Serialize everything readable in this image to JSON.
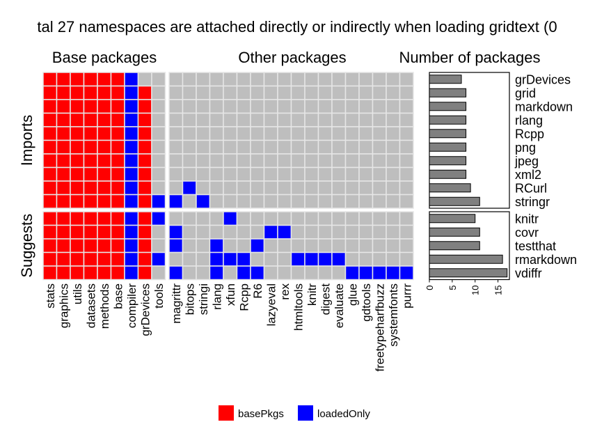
{
  "chart_data": {
    "type": "heatmap",
    "title": "tal 27 namespaces are attached directly or indirectly when loading gridtext (0",
    "panel_titles": {
      "base": "Base packages",
      "other": "Other packages",
      "count": "Number of packages"
    },
    "row_groups": [
      {
        "name": "Imports",
        "rows": [
          "grDevices",
          "grid",
          "markdown",
          "rlang",
          "Rcpp",
          "png",
          "jpeg",
          "xml2",
          "RCurl",
          "stringr"
        ]
      },
      {
        "name": "Suggests",
        "rows": [
          "knitr",
          "covr",
          "testthat",
          "rmarkdown",
          "vdiffr"
        ]
      }
    ],
    "base_columns": [
      "stats",
      "graphics",
      "utils",
      "datasets",
      "methods",
      "base",
      "compiler",
      "grDevices",
      "tools"
    ],
    "other_columns": [
      "magrittr",
      "bitops",
      "stringi",
      "rlang",
      "xfun",
      "Rcpp",
      "R6",
      "lazyeval",
      "rex",
      "htmltools",
      "knitr",
      "digest",
      "evaluate",
      "glue",
      "gdtools",
      "freetypeharfbuzz",
      "systemfonts",
      "purrr"
    ],
    "cells": {
      "grDevices": {
        "basePkgs": [
          "stats",
          "graphics",
          "utils",
          "datasets",
          "methods",
          "base"
        ],
        "loadedOnly": [
          "compiler"
        ]
      },
      "grid": {
        "basePkgs": [
          "stats",
          "graphics",
          "utils",
          "datasets",
          "methods",
          "base",
          "grDevices"
        ],
        "loadedOnly": [
          "compiler"
        ]
      },
      "markdown": {
        "basePkgs": [
          "stats",
          "graphics",
          "utils",
          "datasets",
          "methods",
          "base",
          "grDevices"
        ],
        "loadedOnly": [
          "compiler"
        ]
      },
      "rlang": {
        "basePkgs": [
          "stats",
          "graphics",
          "utils",
          "datasets",
          "methods",
          "base",
          "grDevices"
        ],
        "loadedOnly": [
          "compiler"
        ]
      },
      "Rcpp": {
        "basePkgs": [
          "stats",
          "graphics",
          "utils",
          "datasets",
          "methods",
          "base",
          "grDevices"
        ],
        "loadedOnly": [
          "compiler"
        ]
      },
      "png": {
        "basePkgs": [
          "stats",
          "graphics",
          "utils",
          "datasets",
          "methods",
          "base",
          "grDevices"
        ],
        "loadedOnly": [
          "compiler"
        ]
      },
      "jpeg": {
        "basePkgs": [
          "stats",
          "graphics",
          "utils",
          "datasets",
          "methods",
          "base",
          "grDevices"
        ],
        "loadedOnly": [
          "compiler"
        ]
      },
      "xml2": {
        "basePkgs": [
          "stats",
          "graphics",
          "utils",
          "datasets",
          "methods",
          "base",
          "grDevices"
        ],
        "loadedOnly": [
          "compiler"
        ]
      },
      "RCurl": {
        "basePkgs": [
          "stats",
          "graphics",
          "utils",
          "datasets",
          "methods",
          "base",
          "grDevices"
        ],
        "loadedOnly": [
          "compiler",
          "bitops"
        ]
      },
      "stringr": {
        "basePkgs": [
          "stats",
          "graphics",
          "utils",
          "datasets",
          "methods",
          "base",
          "grDevices"
        ],
        "loadedOnly": [
          "compiler",
          "tools",
          "magrittr",
          "stringi"
        ]
      },
      "knitr": {
        "basePkgs": [
          "stats",
          "graphics",
          "utils",
          "datasets",
          "methods",
          "base",
          "grDevices"
        ],
        "loadedOnly": [
          "compiler",
          "tools",
          "xfun"
        ]
      },
      "covr": {
        "basePkgs": [
          "stats",
          "graphics",
          "utils",
          "datasets",
          "methods",
          "base",
          "grDevices"
        ],
        "loadedOnly": [
          "compiler",
          "magrittr",
          "lazyeval",
          "rex"
        ]
      },
      "testthat": {
        "basePkgs": [
          "stats",
          "graphics",
          "utils",
          "datasets",
          "methods",
          "base",
          "grDevices"
        ],
        "loadedOnly": [
          "compiler",
          "magrittr",
          "rlang",
          "R6"
        ]
      },
      "rmarkdown": {
        "basePkgs": [
          "stats",
          "graphics",
          "utils",
          "datasets",
          "methods",
          "base",
          "grDevices"
        ],
        "loadedOnly": [
          "compiler",
          "tools",
          "rlang",
          "xfun",
          "Rcpp",
          "htmltools",
          "knitr",
          "digest",
          "evaluate"
        ]
      },
      "vdiffr": {
        "basePkgs": [
          "stats",
          "graphics",
          "utils",
          "datasets",
          "methods",
          "base",
          "grDevices"
        ],
        "loadedOnly": [
          "compiler",
          "magrittr",
          "rlang",
          "Rcpp",
          "R6",
          "glue",
          "gdtools",
          "freetypeharfbuzz",
          "systemfonts",
          "purrr"
        ]
      }
    },
    "package_counts": {
      "grDevices": 7,
      "grid": 8,
      "markdown": 8,
      "rlang": 8,
      "Rcpp": 8,
      "png": 8,
      "jpeg": 8,
      "xml2": 8,
      "RCurl": 9,
      "stringr": 11,
      "knitr": 10,
      "covr": 11,
      "testthat": 11,
      "rmarkdown": 16,
      "vdiffr": 17
    },
    "count_axis": {
      "ticks": [
        0,
        5,
        10,
        15
      ],
      "xlim": [
        0,
        17.5
      ]
    },
    "legend": {
      "position": "bottom",
      "items": [
        {
          "key": "basePkgs",
          "label": "basePkgs",
          "color": "#ff0000"
        },
        {
          "key": "loadedOnly",
          "label": "loadedOnly",
          "color": "#0000ff"
        }
      ]
    },
    "colors": {
      "empty_cell": "#bebebe",
      "cell_border": "#e6e6e6",
      "bar_fill": "#808080",
      "bar_stroke": "#000000"
    }
  }
}
